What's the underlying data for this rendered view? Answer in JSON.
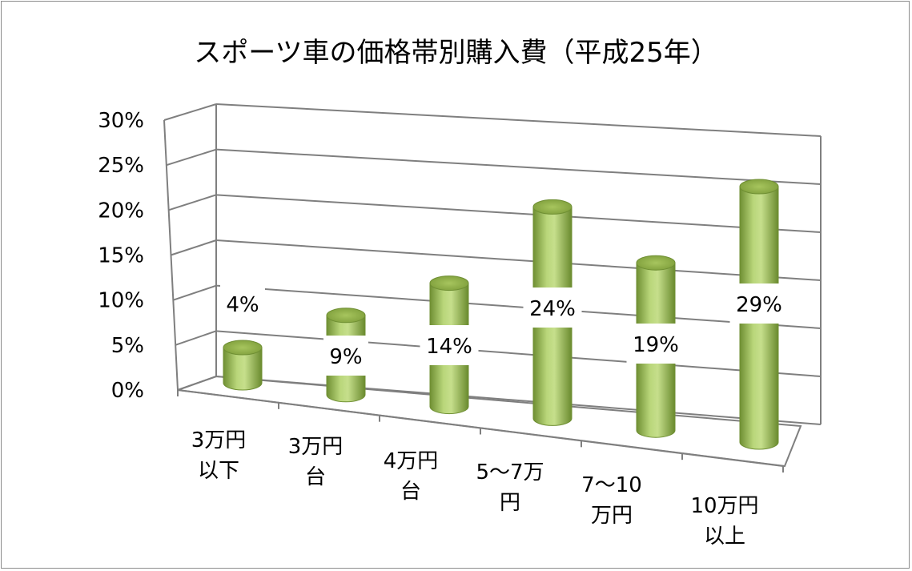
{
  "chart_data": {
    "type": "bar",
    "title": "スポーツ車の価格帯別購入費（平成25年）",
    "categories": [
      [
        "3万円",
        "以下"
      ],
      [
        "3万円",
        "台"
      ],
      [
        "4万円",
        "台"
      ],
      [
        "5～7万",
        "円"
      ],
      [
        "7～10",
        "万円"
      ],
      [
        "10万円",
        "以上"
      ]
    ],
    "values": [
      4,
      9,
      14,
      24,
      19,
      29
    ],
    "data_labels": [
      "4%",
      "9%",
      "14%",
      "24%",
      "19%",
      "29%"
    ],
    "y_ticks": [
      "0%",
      "5%",
      "10%",
      "15%",
      "20%",
      "25%",
      "30%"
    ],
    "ylim": [
      0,
      30
    ],
    "unit": "%",
    "grid": true,
    "style": "3d-cylinder",
    "colors": {
      "bar": "#9bbb59",
      "bar_dark": "#6f8f33",
      "bar_light": "#d7e8a8",
      "grid": "#7f7f7f"
    }
  }
}
